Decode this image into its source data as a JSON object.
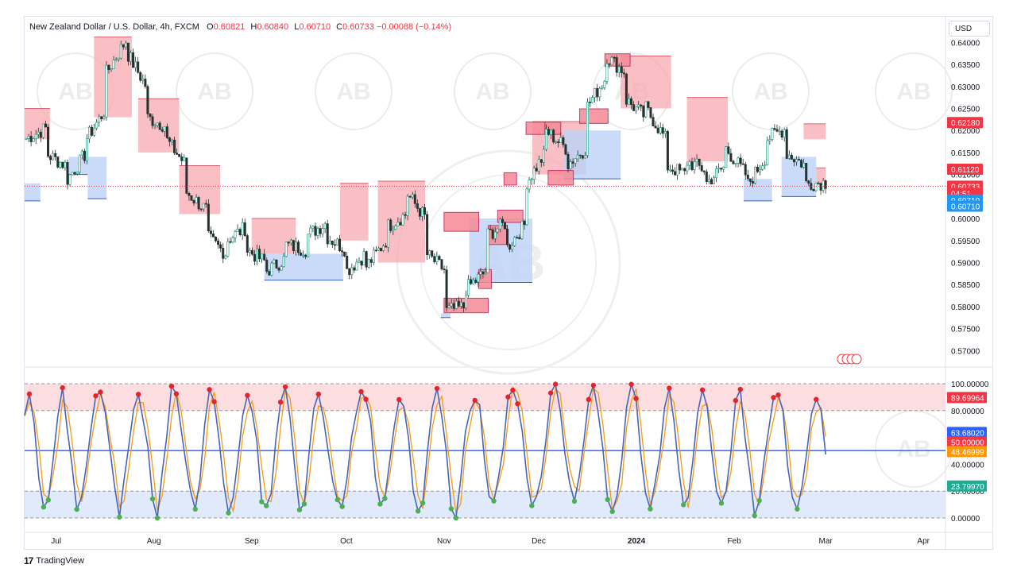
{
  "header": {
    "symbol": "New Zealand Dollar / U.S. Dollar, 4h, FXCM",
    "open_label": "O",
    "open": "0.60821",
    "high_label": "H",
    "high": "0.60840",
    "low_label": "L",
    "low": "0.60710",
    "close_label": "C",
    "close": "0.60733",
    "change": "−0.00088 (−0.14%)"
  },
  "currency_button": "USD",
  "footer": {
    "brand": "TradingView"
  },
  "watermark_text": "AB",
  "colors": {
    "up": "#089981",
    "down": "#f23645",
    "candle": "#26322f",
    "supply_zone": "#f7a9b0",
    "demand_zone": "#bcd2f7",
    "overbought_band": "#fcdadd",
    "oversold_band": "#dde8fb",
    "stoch_k": "#4a63b8",
    "stoch_d": "#f39c12",
    "mid_line": "#f23645",
    "accent_blue": "#2962ff",
    "label_green": "#22ab94",
    "label_orange": "#ff9800",
    "label_lightblue": "#42a5f5"
  },
  "price_axis": {
    "ticks": [
      "0.64000",
      "0.63500",
      "0.63000",
      "0.62500",
      "0.62000",
      "0.61500",
      "0.61000",
      "0.60500",
      "0.60000",
      "0.59500",
      "0.59000",
      "0.58500",
      "0.58000",
      "0.57500",
      "0.57000"
    ],
    "labels": [
      {
        "text": "0.62180",
        "value": 0.6218,
        "color": "#f23645"
      },
      {
        "text": "0.61120",
        "value": 0.6112,
        "color": "#f23645"
      },
      {
        "text": "0.60733",
        "value": 0.60733,
        "color": "#f23645"
      },
      {
        "text": "04:51",
        "value": 0.6057,
        "color": "#f23645"
      },
      {
        "text": "0.60710",
        "value": 0.6042,
        "color": "#2196f3"
      },
      {
        "text": "0.60710",
        "value": 0.6028,
        "color": "#2196f3"
      }
    ]
  },
  "osc_axis": {
    "ticks": [
      "100.00000",
      "80.00000",
      "60.00000",
      "40.00000",
      "20.00000",
      "0.00000"
    ],
    "labels": [
      {
        "text": "89.69964",
        "value": 89.7,
        "color": "#f23645"
      },
      {
        "text": "63.68020",
        "value": 63.68,
        "color": "#2962ff"
      },
      {
        "text": "50.00000",
        "value": 56.5,
        "color": "#f23645"
      },
      {
        "text": "48.46999",
        "value": 49.5,
        "color": "#ff9800"
      },
      {
        "text": "23.79970",
        "value": 23.8,
        "color": "#22ab94"
      }
    ]
  },
  "time_axis": [
    "Jul",
    "Aug",
    "Sep",
    "Oct",
    "Nov",
    "Dec",
    "2024",
    "Feb",
    "Mar",
    "Apr"
  ],
  "chart_data": {
    "type": "candlestick",
    "title": "New Zealand Dollar / U.S. Dollar, 4h, FXCM",
    "ylim": [
      0.567,
      0.6415
    ],
    "xlabel": "",
    "ylabel": "",
    "price_path": [
      [
        0.6215,
        0.6182
      ],
      [
        0.6205,
        0.6147
      ],
      [
        0.612,
        0.6085
      ],
      [
        0.615,
        0.618
      ],
      [
        0.625,
        0.633
      ],
      [
        0.6405,
        0.638
      ],
      [
        0.63,
        0.623
      ],
      [
        0.621,
        0.618
      ],
      [
        0.612,
        0.606
      ],
      [
        0.602,
        0.596
      ],
      [
        0.592,
        0.595
      ],
      [
        0.598,
        0.593
      ],
      [
        0.59,
        0.588
      ],
      [
        0.591,
        0.594
      ],
      [
        0.593,
        0.596
      ],
      [
        0.599,
        0.596
      ],
      [
        0.593,
        0.588
      ],
      [
        0.592,
        0.589
      ],
      [
        0.595,
        0.598
      ],
      [
        0.601,
        0.606
      ],
      [
        0.6,
        0.592
      ],
      [
        0.588,
        0.579
      ],
      [
        0.58,
        0.584
      ],
      [
        0.588,
        0.596
      ],
      [
        0.599,
        0.593
      ],
      [
        0.599,
        0.608
      ],
      [
        0.615,
        0.62
      ],
      [
        0.616,
        0.612
      ],
      [
        0.616,
        0.625
      ],
      [
        0.632,
        0.637
      ],
      [
        0.633,
        0.627
      ],
      [
        0.623,
        0.625
      ],
      [
        0.618,
        0.612
      ],
      [
        0.61,
        0.613
      ],
      [
        0.611,
        0.608
      ],
      [
        0.612,
        0.616
      ],
      [
        0.61,
        0.607
      ],
      [
        0.614,
        0.618
      ],
      [
        0.6205,
        0.615
      ],
      [
        0.612,
        0.608
      ],
      [
        0.6082,
        0.6073
      ]
    ],
    "supply_zones": [
      {
        "start": "2023-06-21",
        "end": "2023-06-29",
        "top": 0.625,
        "bottom": 0.618
      },
      {
        "start": "2023-07-13",
        "end": "2023-07-25",
        "top": 0.6412,
        "bottom": 0.623
      },
      {
        "start": "2023-07-27",
        "end": "2023-08-09",
        "top": 0.6272,
        "bottom": 0.615
      },
      {
        "start": "2023-08-09",
        "end": "2023-08-22",
        "top": 0.612,
        "bottom": 0.601
      },
      {
        "start": "2023-09-01",
        "end": "2023-09-15",
        "top": 0.6,
        "bottom": 0.592
      },
      {
        "start": "2023-09-29",
        "end": "2023-10-08",
        "top": 0.608,
        "bottom": 0.595
      },
      {
        "start": "2023-10-11",
        "end": "2023-10-26",
        "top": 0.6085,
        "bottom": 0.59
      },
      {
        "start": "2023-11-29",
        "end": "2023-12-16",
        "top": 0.622,
        "bottom": 0.61
      },
      {
        "start": "2023-12-27",
        "end": "2024-01-12",
        "top": 0.6369,
        "bottom": 0.625
      },
      {
        "start": "2024-01-17",
        "end": "2024-01-30",
        "top": 0.6275,
        "bottom": 0.613
      },
      {
        "start": "2024-02-23",
        "end": "2024-03-01",
        "top": 0.6215,
        "bottom": 0.618
      },
      {
        "start": "2024-02-27",
        "end": "2024-03-01",
        "top": 0.6115,
        "bottom": 0.6075
      }
    ],
    "demand_zones": [
      {
        "start": "2023-06-21",
        "end": "2023-06-26",
        "top": 0.608,
        "bottom": 0.604
      },
      {
        "start": "2023-07-05",
        "end": "2023-07-11",
        "top": 0.614,
        "bottom": 0.61
      },
      {
        "start": "2023-07-11",
        "end": "2023-07-17",
        "top": 0.614,
        "bottom": 0.6045
      },
      {
        "start": "2023-09-05",
        "end": "2023-09-30",
        "top": 0.592,
        "bottom": 0.586
      },
      {
        "start": "2023-10-31",
        "end": "2023-11-03",
        "top": 0.5785,
        "bottom": 0.5775
      },
      {
        "start": "2023-11-09",
        "end": "2023-11-29",
        "top": 0.6,
        "bottom": 0.5855
      },
      {
        "start": "2023-12-09",
        "end": "2023-12-27",
        "top": 0.62,
        "bottom": 0.609
      },
      {
        "start": "2024-02-04",
        "end": "2024-02-13",
        "top": 0.609,
        "bottom": 0.604
      },
      {
        "start": "2024-02-16",
        "end": "2024-02-27",
        "top": 0.614,
        "bottom": 0.605
      }
    ],
    "marked_zones": [
      {
        "start": "2023-11-01",
        "end": "2023-11-15",
        "top": 0.581,
        "bottom": 0.5795
      },
      {
        "start": "2023-11-01",
        "end": "2023-11-12",
        "top": 0.6005,
        "bottom": 0.598
      },
      {
        "start": "2023-11-12",
        "end": "2023-11-16",
        "top": 0.5875,
        "bottom": 0.585
      },
      {
        "start": "2023-11-15",
        "end": "2023-11-21",
        "top": 0.5975,
        "bottom": 0.595
      },
      {
        "start": "2023-11-18",
        "end": "2023-11-26",
        "top": 0.601,
        "bottom": 0.6
      },
      {
        "start": "2023-11-20",
        "end": "2023-11-24",
        "top": 0.6095,
        "bottom": 0.6085
      },
      {
        "start": "2023-11-27",
        "end": "2023-12-03",
        "top": 0.621,
        "bottom": 0.62
      },
      {
        "start": "2023-12-03",
        "end": "2023-12-08",
        "top": 0.621,
        "bottom": 0.62
      },
      {
        "start": "2023-12-04",
        "end": "2023-12-12",
        "top": 0.61,
        "bottom": 0.6085
      },
      {
        "start": "2023-12-14",
        "end": "2023-12-23",
        "top": 0.624,
        "bottom": 0.6225
      },
      {
        "start": "2023-12-22",
        "end": "2023-12-30",
        "top": 0.6365,
        "bottom": 0.6355
      }
    ],
    "last_price": 0.60733,
    "oscillator": {
      "name": "",
      "ylim": [
        0,
        100
      ],
      "overbought": 80,
      "oversold": 20,
      "mid": 50,
      "k_last": 63.68,
      "d_last": 48.47
    }
  }
}
